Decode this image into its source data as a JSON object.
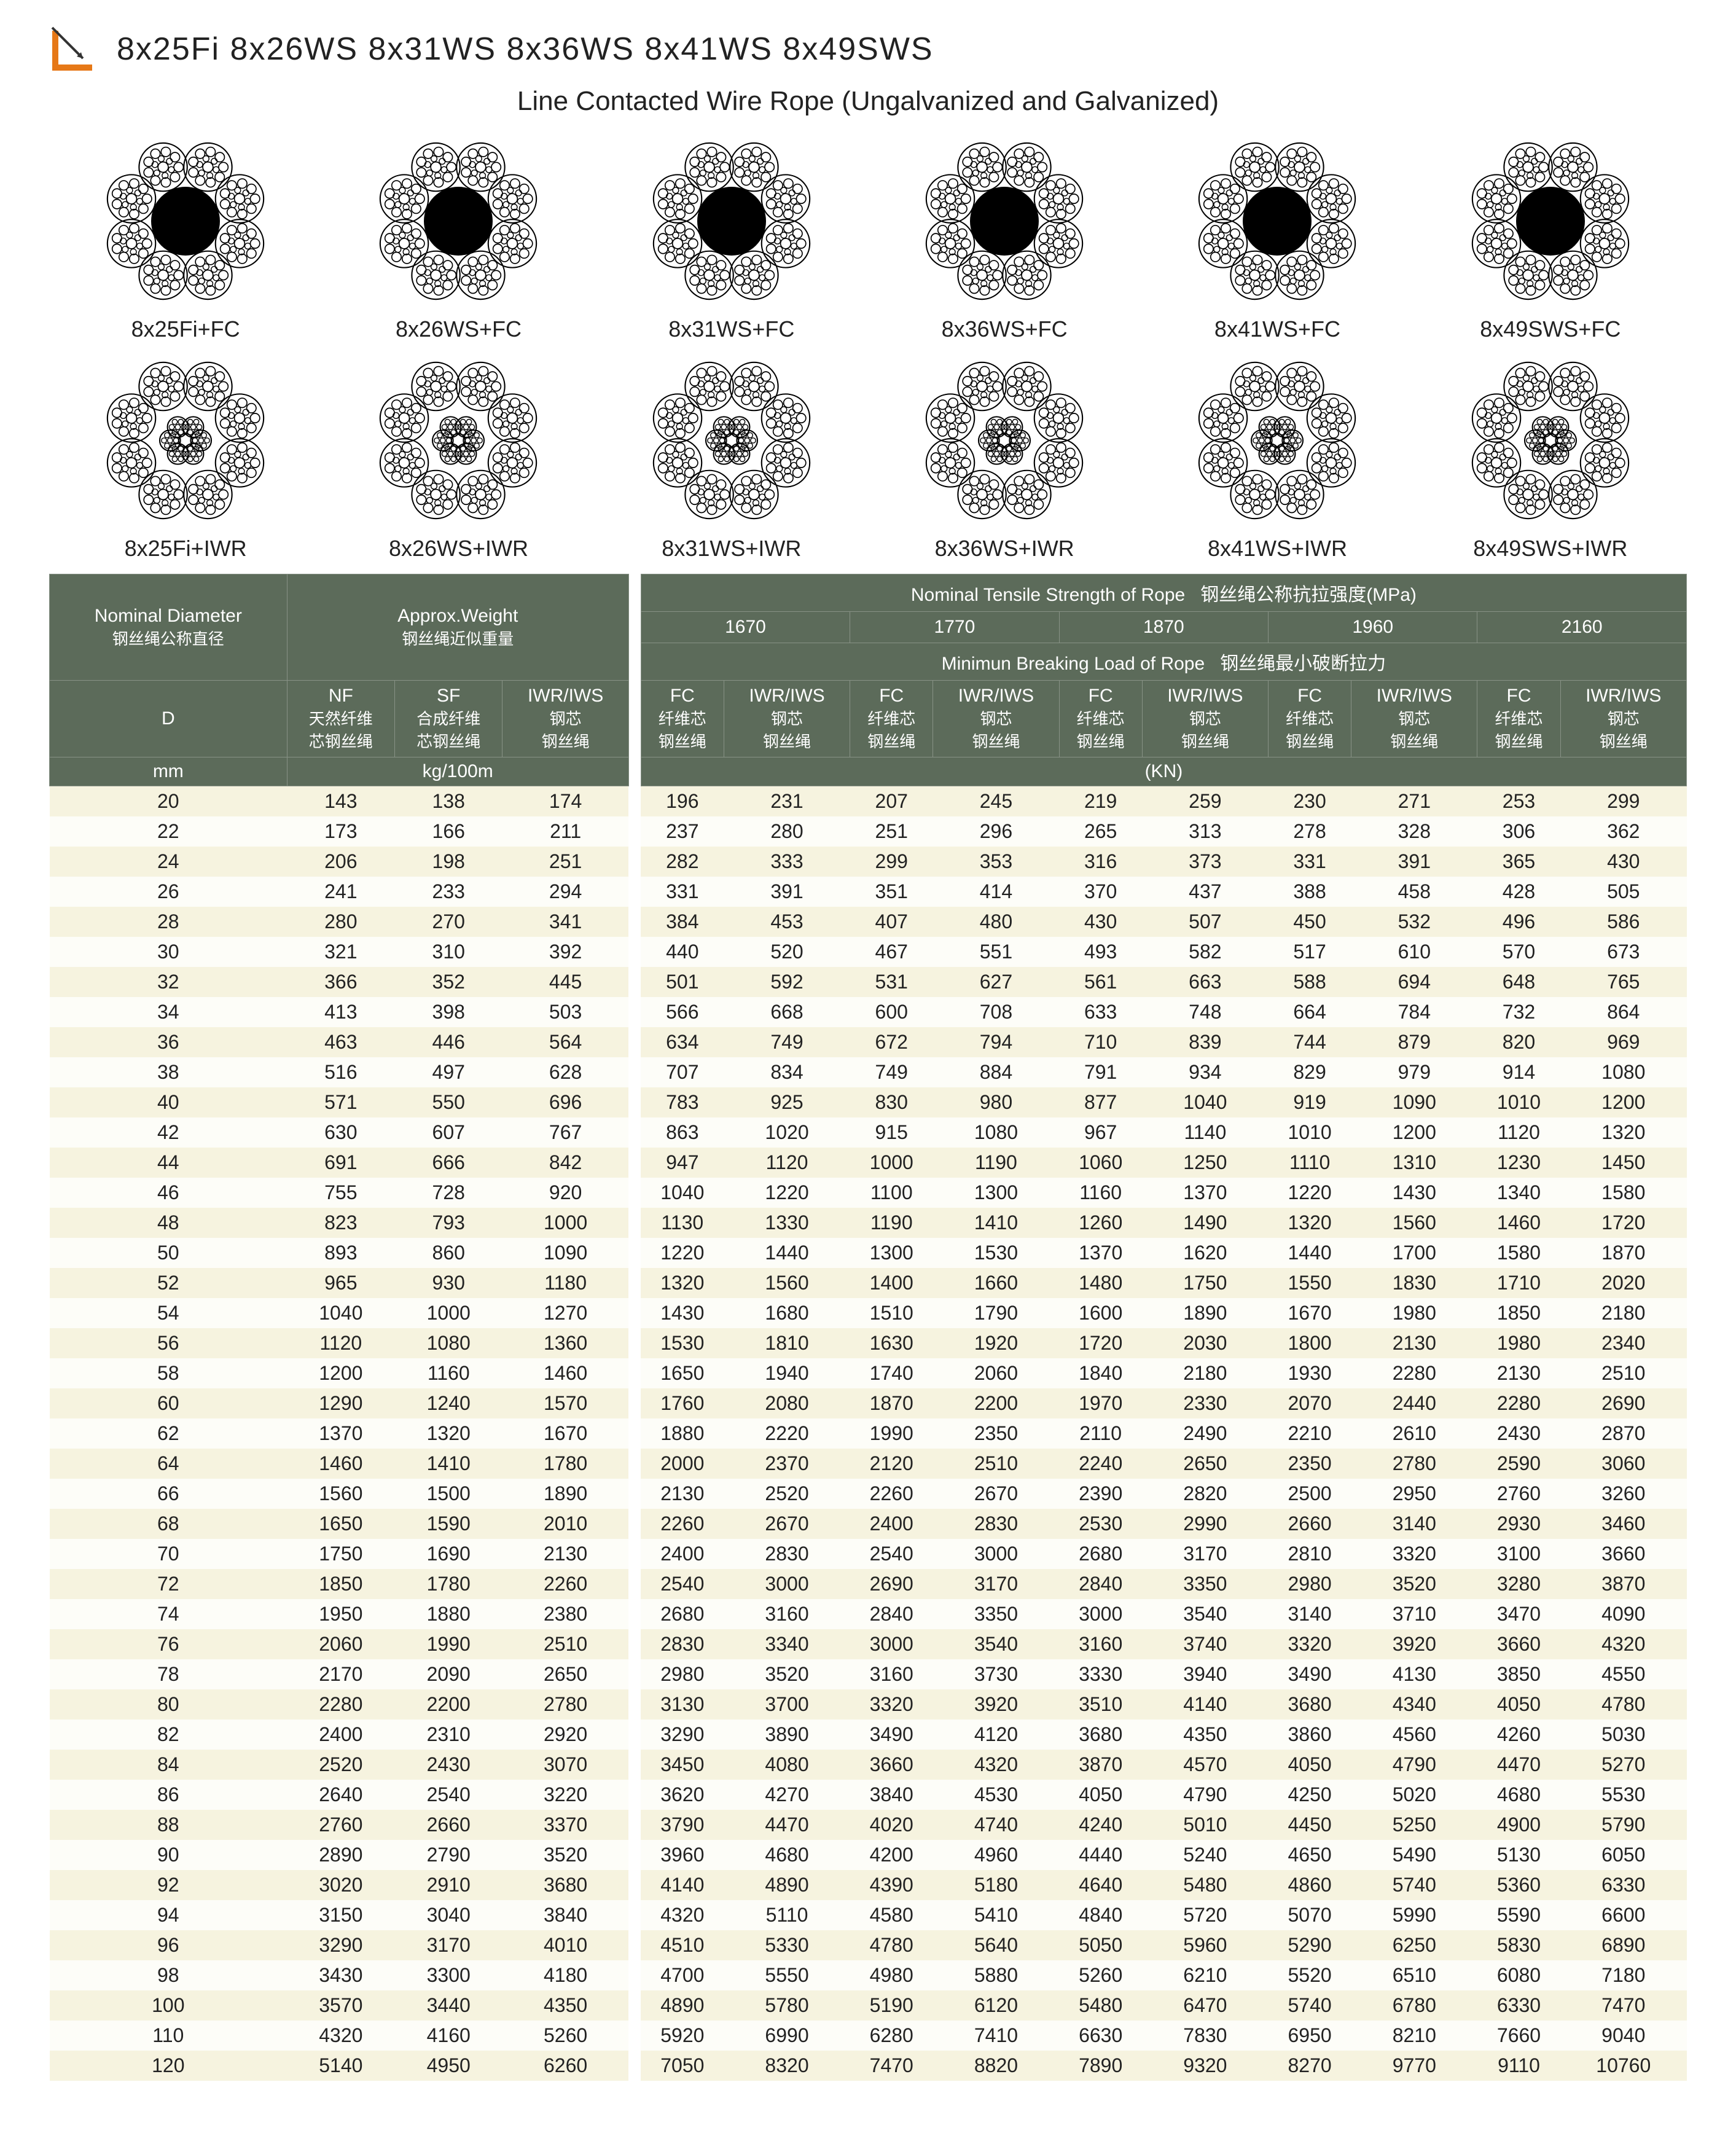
{
  "title_codes": "8x25Fi  8x26WS  8x31WS   8x36WS 8x41WS  8x49SWS",
  "subtitle": "Line Contacted Wire Rope (Ungalvanized and Galvanized)",
  "diagram_rows": [
    {
      "filled": true,
      "labels": [
        "8x25Fi+FC",
        "8x26WS+FC",
        "8x31WS+FC",
        "8x36WS+FC",
        "8x41WS+FC",
        "8x49SWS+FC"
      ]
    },
    {
      "filled": false,
      "labels": [
        "8x25Fi+IWR",
        "8x26WS+IWR",
        "8x31WS+IWR",
        "8x36WS+IWR",
        "8x41WS+IWR",
        "8x49SWS+IWR"
      ]
    }
  ],
  "header": {
    "nominal_diameter": {
      "en": "Nominal Diameter",
      "cn": "钢丝绳公称直径"
    },
    "approx_weight": {
      "en": "Approx.Weight",
      "cn": "钢丝绳近似重量"
    },
    "tensile": {
      "en": "Nominal Tensile Strength of Rope",
      "cn": "钢丝绳公称抗拉强度(MPa)"
    },
    "breaking": {
      "en": "Minimun Breaking Load of Rope",
      "cn": "钢丝绳最小破断拉力"
    },
    "strengths": [
      "1670",
      "1770",
      "1870",
      "1960",
      "2160"
    ],
    "d": "D",
    "nf": {
      "l1": "NF",
      "l2": "天然纤维",
      "l3": "芯钢丝绳"
    },
    "sf": {
      "l1": "SF",
      "l2": "合成纤维",
      "l3": "芯钢丝绳"
    },
    "iwr_w": {
      "l1": "IWR/IWS",
      "l2": "钢芯",
      "l3": "钢丝绳"
    },
    "fc": {
      "l1": "FC",
      "l2": "纤维芯",
      "l3": "钢丝绳"
    },
    "iwr": {
      "l1": "IWR/IWS",
      "l2": "钢芯",
      "l3": "钢丝绳"
    },
    "mm": "mm",
    "kg": "kg/100m",
    "kn": "(KN)"
  },
  "rows": [
    [
      20,
      143,
      138,
      174,
      196,
      231,
      207,
      245,
      219,
      259,
      230,
      271,
      253,
      299
    ],
    [
      22,
      173,
      166,
      211,
      237,
      280,
      251,
      296,
      265,
      313,
      278,
      328,
      306,
      362
    ],
    [
      24,
      206,
      198,
      251,
      282,
      333,
      299,
      353,
      316,
      373,
      331,
      391,
      365,
      430
    ],
    [
      26,
      241,
      233,
      294,
      331,
      391,
      351,
      414,
      370,
      437,
      388,
      458,
      428,
      505
    ],
    [
      28,
      280,
      270,
      341,
      384,
      453,
      407,
      480,
      430,
      507,
      450,
      532,
      496,
      586
    ],
    [
      30,
      321,
      310,
      392,
      440,
      520,
      467,
      551,
      493,
      582,
      517,
      610,
      570,
      673
    ],
    [
      32,
      366,
      352,
      445,
      501,
      592,
      531,
      627,
      561,
      663,
      588,
      694,
      648,
      765
    ],
    [
      34,
      413,
      398,
      503,
      566,
      668,
      600,
      708,
      633,
      748,
      664,
      784,
      732,
      864
    ],
    [
      36,
      463,
      446,
      564,
      634,
      749,
      672,
      794,
      710,
      839,
      744,
      879,
      820,
      969
    ],
    [
      38,
      516,
      497,
      628,
      707,
      834,
      749,
      884,
      791,
      934,
      829,
      979,
      914,
      1080
    ],
    [
      40,
      571,
      550,
      696,
      783,
      925,
      830,
      980,
      877,
      1040,
      919,
      1090,
      1010,
      1200
    ],
    [
      42,
      630,
      607,
      767,
      863,
      1020,
      915,
      1080,
      967,
      1140,
      1010,
      1200,
      1120,
      1320
    ],
    [
      44,
      691,
      666,
      842,
      947,
      1120,
      1000,
      1190,
      1060,
      1250,
      1110,
      1310,
      1230,
      1450
    ],
    [
      46,
      755,
      728,
      920,
      1040,
      1220,
      1100,
      1300,
      1160,
      1370,
      1220,
      1430,
      1340,
      1580
    ],
    [
      48,
      823,
      793,
      1000,
      1130,
      1330,
      1190,
      1410,
      1260,
      1490,
      1320,
      1560,
      1460,
      1720
    ],
    [
      50,
      893,
      860,
      1090,
      1220,
      1440,
      1300,
      1530,
      1370,
      1620,
      1440,
      1700,
      1580,
      1870
    ],
    [
      52,
      965,
      930,
      1180,
      1320,
      1560,
      1400,
      1660,
      1480,
      1750,
      1550,
      1830,
      1710,
      2020
    ],
    [
      54,
      1040,
      1000,
      1270,
      1430,
      1680,
      1510,
      1790,
      1600,
      1890,
      1670,
      1980,
      1850,
      2180
    ],
    [
      56,
      1120,
      1080,
      1360,
      1530,
      1810,
      1630,
      1920,
      1720,
      2030,
      1800,
      2130,
      1980,
      2340
    ],
    [
      58,
      1200,
      1160,
      1460,
      1650,
      1940,
      1740,
      2060,
      1840,
      2180,
      1930,
      2280,
      2130,
      2510
    ],
    [
      60,
      1290,
      1240,
      1570,
      1760,
      2080,
      1870,
      2200,
      1970,
      2330,
      2070,
      2440,
      2280,
      2690
    ],
    [
      62,
      1370,
      1320,
      1670,
      1880,
      2220,
      1990,
      2350,
      2110,
      2490,
      2210,
      2610,
      2430,
      2870
    ],
    [
      64,
      1460,
      1410,
      1780,
      2000,
      2370,
      2120,
      2510,
      2240,
      2650,
      2350,
      2780,
      2590,
      3060
    ],
    [
      66,
      1560,
      1500,
      1890,
      2130,
      2520,
      2260,
      2670,
      2390,
      2820,
      2500,
      2950,
      2760,
      3260
    ],
    [
      68,
      1650,
      1590,
      2010,
      2260,
      2670,
      2400,
      2830,
      2530,
      2990,
      2660,
      3140,
      2930,
      3460
    ],
    [
      70,
      1750,
      1690,
      2130,
      2400,
      2830,
      2540,
      3000,
      2680,
      3170,
      2810,
      3320,
      3100,
      3660
    ],
    [
      72,
      1850,
      1780,
      2260,
      2540,
      3000,
      2690,
      3170,
      2840,
      3350,
      2980,
      3520,
      3280,
      3870
    ],
    [
      74,
      1950,
      1880,
      2380,
      2680,
      3160,
      2840,
      3350,
      3000,
      3540,
      3140,
      3710,
      3470,
      4090
    ],
    [
      76,
      2060,
      1990,
      2510,
      2830,
      3340,
      3000,
      3540,
      3160,
      3740,
      3320,
      3920,
      3660,
      4320
    ],
    [
      78,
      2170,
      2090,
      2650,
      2980,
      3520,
      3160,
      3730,
      3330,
      3940,
      3490,
      4130,
      3850,
      4550
    ],
    [
      80,
      2280,
      2200,
      2780,
      3130,
      3700,
      3320,
      3920,
      3510,
      4140,
      3680,
      4340,
      4050,
      4780
    ],
    [
      82,
      2400,
      2310,
      2920,
      3290,
      3890,
      3490,
      4120,
      3680,
      4350,
      3860,
      4560,
      4260,
      5030
    ],
    [
      84,
      2520,
      2430,
      3070,
      3450,
      4080,
      3660,
      4320,
      3870,
      4570,
      4050,
      4790,
      4470,
      5270
    ],
    [
      86,
      2640,
      2540,
      3220,
      3620,
      4270,
      3840,
      4530,
      4050,
      4790,
      4250,
      5020,
      4680,
      5530
    ],
    [
      88,
      2760,
      2660,
      3370,
      3790,
      4470,
      4020,
      4740,
      4240,
      5010,
      4450,
      5250,
      4900,
      5790
    ],
    [
      90,
      2890,
      2790,
      3520,
      3960,
      4680,
      4200,
      4960,
      4440,
      5240,
      4650,
      5490,
      5130,
      6050
    ],
    [
      92,
      3020,
      2910,
      3680,
      4140,
      4890,
      4390,
      5180,
      4640,
      5480,
      4860,
      5740,
      5360,
      6330
    ],
    [
      94,
      3150,
      3040,
      3840,
      4320,
      5110,
      4580,
      5410,
      4840,
      5720,
      5070,
      5990,
      5590,
      6600
    ],
    [
      96,
      3290,
      3170,
      4010,
      4510,
      5330,
      4780,
      5640,
      5050,
      5960,
      5290,
      6250,
      5830,
      6890
    ],
    [
      98,
      3430,
      3300,
      4180,
      4700,
      5550,
      4980,
      5880,
      5260,
      6210,
      5520,
      6510,
      6080,
      7180
    ],
    [
      100,
      3570,
      3440,
      4350,
      4890,
      5780,
      5190,
      6120,
      5480,
      6470,
      5740,
      6780,
      6330,
      7470
    ],
    [
      110,
      4320,
      4160,
      5260,
      5920,
      6990,
      6280,
      7410,
      6630,
      7830,
      6950,
      8210,
      7660,
      9040
    ],
    [
      120,
      5140,
      4950,
      6260,
      7050,
      8320,
      7470,
      8820,
      7890,
      9320,
      8270,
      9770,
      9110,
      10760
    ]
  ],
  "colors": {
    "header_bg": "#5c6b5a",
    "header_border": "#889286",
    "row_odd": "#f6f3df",
    "row_even": "#fdfdf8",
    "accent": "#e67817"
  }
}
